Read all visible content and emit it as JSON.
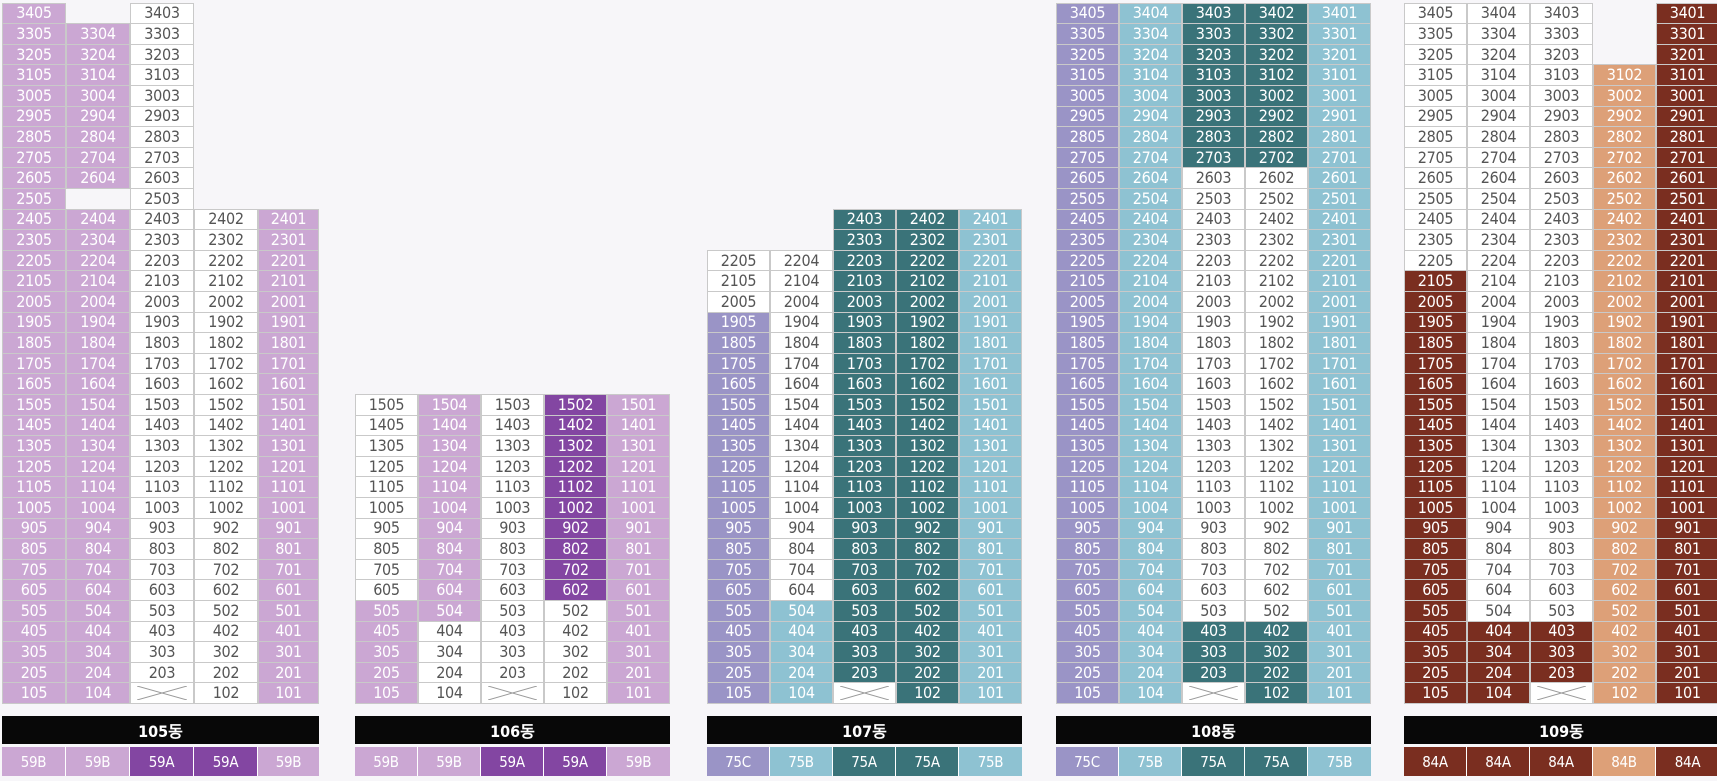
{
  "colors": {
    "white": "#ffffff",
    "59B": "#cba7d3",
    "59A": "#8346a2",
    "75C": "#9a94c6",
    "75B": "#8ec2d2",
    "75A": "#3a7379",
    "84A": "#7a2e20",
    "84B": "#dda078"
  },
  "buildings": [
    {
      "name": "105동",
      "lines": [
        {
          "line": "05",
          "label": "59B",
          "colored": [
            [
              1,
              34
            ]
          ],
          "unit_floors": [
            [
              1,
              34
            ]
          ]
        },
        {
          "line": "04",
          "label": "59B",
          "colored": [
            [
              1,
              33
            ]
          ],
          "unit_floors": [
            [
              1,
              24
            ],
            [
              26,
              33
            ]
          ]
        },
        {
          "line": "03",
          "label": "59A",
          "colored": [],
          "unit_floors": [
            [
              2,
              34
            ]
          ],
          "void_floors": [
            1
          ]
        },
        {
          "line": "02",
          "label": "59A",
          "colored": [],
          "unit_floors": [
            [
              1,
              24
            ]
          ]
        },
        {
          "line": "01",
          "label": "59B",
          "colored": [
            [
              1,
              24
            ]
          ],
          "unit_floors": [
            [
              1,
              24
            ]
          ]
        }
      ]
    },
    {
      "name": "106동",
      "lines": [
        {
          "line": "05",
          "label": "59B",
          "colored": [
            [
              1,
              5
            ]
          ],
          "unit_floors": [
            [
              1,
              15
            ]
          ]
        },
        {
          "line": "04",
          "label": "59B",
          "colored": [
            [
              5,
              15
            ]
          ],
          "unit_floors": [
            [
              1,
              15
            ]
          ]
        },
        {
          "line": "03",
          "label": "59A",
          "colored": [],
          "unit_floors": [
            [
              2,
              15
            ]
          ],
          "void_floors": [
            1
          ]
        },
        {
          "line": "02",
          "label": "59A",
          "colored": [
            [
              6,
              15
            ]
          ],
          "unit_floors": [
            [
              1,
              15
            ]
          ]
        },
        {
          "line": "01",
          "label": "59B",
          "colored": [
            [
              1,
              15
            ]
          ],
          "unit_floors": [
            [
              1,
              15
            ]
          ]
        }
      ]
    },
    {
      "name": "107동",
      "lines": [
        {
          "line": "05",
          "label": "75C",
          "colored": [
            [
              1,
              19
            ]
          ],
          "unit_floors": [
            [
              1,
              22
            ]
          ]
        },
        {
          "line": "04",
          "label": "75B",
          "colored": [
            [
              1,
              5
            ]
          ],
          "unit_floors": [
            [
              1,
              22
            ]
          ]
        },
        {
          "line": "03",
          "label": "75A",
          "colored": [
            [
              2,
              24
            ]
          ],
          "unit_floors": [
            [
              2,
              24
            ]
          ],
          "void_floors": [
            1
          ]
        },
        {
          "line": "02",
          "label": "75A",
          "colored": [
            [
              1,
              24
            ]
          ],
          "unit_floors": [
            [
              1,
              24
            ]
          ]
        },
        {
          "line": "01",
          "label": "75B",
          "colored": [
            [
              1,
              24
            ]
          ],
          "unit_floors": [
            [
              1,
              24
            ]
          ]
        }
      ]
    },
    {
      "name": "108동",
      "lines": [
        {
          "line": "05",
          "label": "75C",
          "colored": [
            [
              1,
              34
            ]
          ],
          "unit_floors": [
            [
              1,
              34
            ]
          ]
        },
        {
          "line": "04",
          "label": "75B",
          "colored": [
            [
              1,
              34
            ]
          ],
          "unit_floors": [
            [
              1,
              34
            ]
          ]
        },
        {
          "line": "03",
          "label": "75A",
          "colored": [
            [
              2,
              4
            ],
            [
              27,
              34
            ]
          ],
          "unit_floors": [
            [
              2,
              34
            ]
          ],
          "void_floors": [
            1
          ]
        },
        {
          "line": "02",
          "label": "75A",
          "colored": [
            [
              1,
              4
            ],
            [
              27,
              34
            ]
          ],
          "unit_floors": [
            [
              1,
              34
            ]
          ]
        },
        {
          "line": "01",
          "label": "75B",
          "colored": [
            [
              1,
              34
            ]
          ],
          "unit_floors": [
            [
              1,
              34
            ]
          ]
        }
      ]
    },
    {
      "name": "109동",
      "lines": [
        {
          "line": "05",
          "label": "84A",
          "colored": [
            [
              1,
              21
            ]
          ],
          "unit_floors": [
            [
              1,
              34
            ]
          ]
        },
        {
          "line": "04",
          "label": "84A",
          "colored": [
            [
              1,
              4
            ]
          ],
          "unit_floors": [
            [
              1,
              34
            ]
          ]
        },
        {
          "line": "03",
          "label": "84A",
          "colored": [
            [
              2,
              4
            ]
          ],
          "unit_floors": [
            [
              2,
              34
            ]
          ],
          "void_floors": [
            1
          ]
        },
        {
          "line": "02",
          "label": "84B",
          "colored": [
            [
              1,
              31
            ]
          ],
          "unit_floors": [
            [
              1,
              31
            ]
          ]
        },
        {
          "line": "01",
          "label": "84A",
          "colored": [
            [
              1,
              34
            ]
          ],
          "unit_floors": [
            [
              1,
              34
            ]
          ]
        }
      ]
    }
  ]
}
